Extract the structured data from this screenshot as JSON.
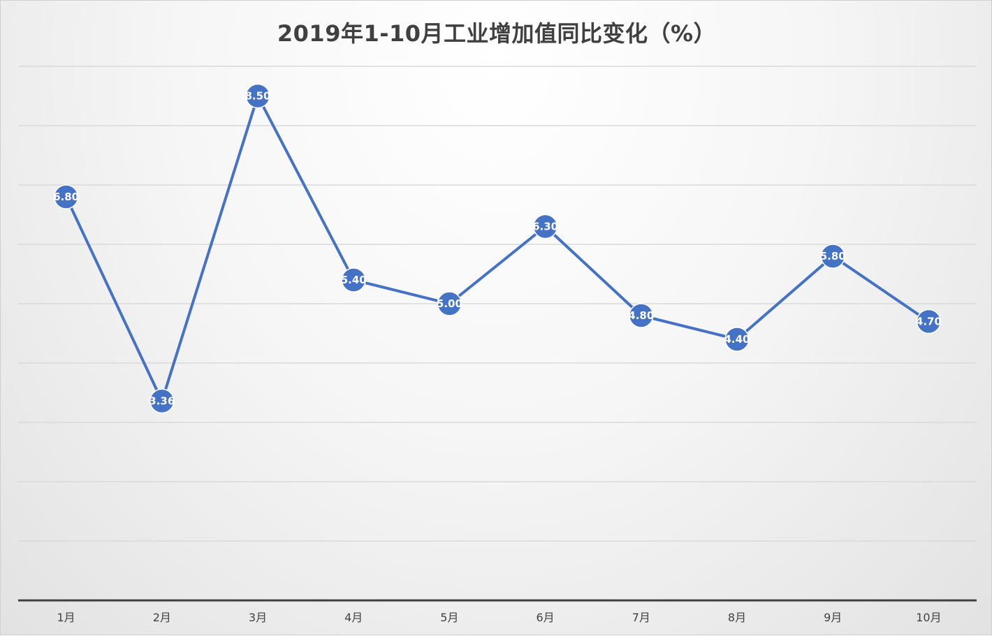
{
  "chart_data": {
    "type": "line",
    "title": "2019年1-10月工业增加值同比变化（%）",
    "categories": [
      "1月",
      "2月",
      "3月",
      "4月",
      "5月",
      "6月",
      "7月",
      "8月",
      "9月",
      "10月"
    ],
    "series": [
      {
        "values": [
          6.8,
          3.36,
          8.5,
          5.4,
          5.0,
          6.3,
          4.8,
          4.4,
          5.8,
          4.7
        ],
        "labels": [
          "6.80",
          "3.36",
          "8.50",
          "5.40",
          "5.00",
          "6.30",
          "4.80",
          "4.40",
          "5.80",
          "4.70"
        ],
        "color": "#4472c4"
      }
    ],
    "ylim": [
      0,
      9
    ],
    "grid": true,
    "legend": "none",
    "data_labels": "on markers"
  }
}
